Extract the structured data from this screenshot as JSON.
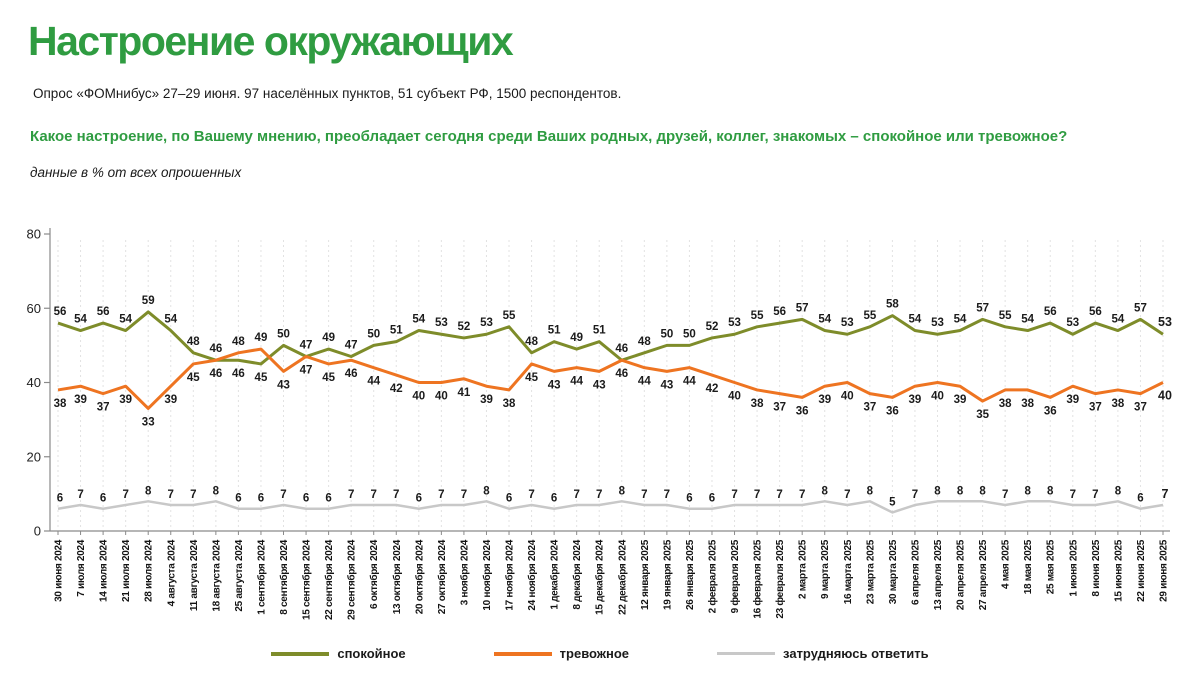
{
  "header": {
    "title": "Настроение окружающих",
    "subtitle": "Опрос «ФОМнибус» 27–29 июня. 97 населённых пунктов, 51 субъект РФ, 1500 респондентов.",
    "question": "Какое настроение, по Вашему мнению, преобладает сегодня среди Ваших родных, друзей, коллег, знакомых – спокойное или тревожное?",
    "note": "данные в % от всех опрошенных"
  },
  "colors": {
    "title_green": "#2f9c41",
    "calm": "#7e8c2a",
    "anxious": "#ee7421",
    "undecided": "#c8c8c8",
    "axis": "#8a8a8a",
    "grid": "#e2e2e2",
    "value_label": "#1b1b1b"
  },
  "chart_data": {
    "type": "line",
    "categories": [
      "30 июня 2024",
      "7 июля 2024",
      "14 июля 2024",
      "21 июля 2024",
      "28 июля 2024",
      "4 августа 2024",
      "11 августа 2024",
      "18 августа 2024",
      "25 августа 2024",
      "1 сентября 2024",
      "8 сентября 2024",
      "15 сентября 2024",
      "22 сентября 2024",
      "29 сентября 2024",
      "6 октября 2024",
      "13 октября 2024",
      "20 октября 2024",
      "27 октября 2024",
      "3 ноября 2024",
      "10 ноября 2024",
      "17 ноября 2024",
      "24 ноября 2024",
      "1 декабря 2024",
      "8 декабря 2024",
      "15 декабря 2024",
      "22 декабря 2024",
      "12 января 2025",
      "19 января 2025",
      "26 января 2025",
      "2 февраля 2025",
      "9 февраля 2025",
      "16 февраля 2025",
      "23 февраля 2025",
      "2 марта 2025",
      "9 марта 2025",
      "16 марта 2025",
      "23 марта 2025",
      "30 марта 2025",
      "6 апреля 2025",
      "13 апреля 2025",
      "20 апреля 2025",
      "27 апреля 2025",
      "4 мая 2025",
      "18 мая 2025",
      "25 мая 2025",
      "1 июня 2025",
      "8 июня 2025",
      "15 июня 2025",
      "22 июня 2025",
      "29 июня 2025"
    ],
    "series": [
      {
        "name": "спокойное",
        "color_key": "calm",
        "values": [
          56,
          54,
          56,
          54,
          59,
          54,
          48,
          46,
          46,
          45,
          50,
          47,
          49,
          47,
          50,
          51,
          54,
          53,
          52,
          53,
          55,
          48,
          51,
          49,
          51,
          46,
          48,
          50,
          50,
          52,
          53,
          55,
          56,
          57,
          54,
          53,
          55,
          58,
          54,
          53,
          54,
          57,
          55,
          54,
          56,
          53,
          56,
          54,
          57,
          53
        ]
      },
      {
        "name": "тревожное",
        "color_key": "anxious",
        "values": [
          38,
          39,
          37,
          39,
          33,
          39,
          45,
          46,
          48,
          49,
          43,
          47,
          45,
          46,
          44,
          42,
          40,
          40,
          41,
          39,
          38,
          45,
          43,
          44,
          43,
          46,
          44,
          43,
          44,
          42,
          40,
          38,
          37,
          36,
          39,
          40,
          37,
          36,
          39,
          40,
          39,
          35,
          38,
          38,
          36,
          39,
          37,
          38,
          37,
          40
        ]
      },
      {
        "name": "затрудняюсь ответить",
        "color_key": "undecided",
        "values": [
          6,
          7,
          6,
          7,
          8,
          7,
          7,
          8,
          6,
          6,
          7,
          6,
          6,
          7,
          7,
          7,
          6,
          7,
          7,
          8,
          6,
          7,
          6,
          7,
          7,
          8,
          7,
          7,
          6,
          6,
          7,
          7,
          7,
          7,
          8,
          7,
          8,
          5,
          7,
          8,
          8,
          8,
          7,
          8,
          8,
          7,
          7,
          8,
          6,
          7
        ]
      }
    ],
    "ylim": [
      0,
      80
    ],
    "yticks": [
      0,
      20,
      40,
      60,
      80
    ],
    "grid": "vertical-dashed",
    "legend_position": "bottom",
    "last_point_bold": true
  }
}
